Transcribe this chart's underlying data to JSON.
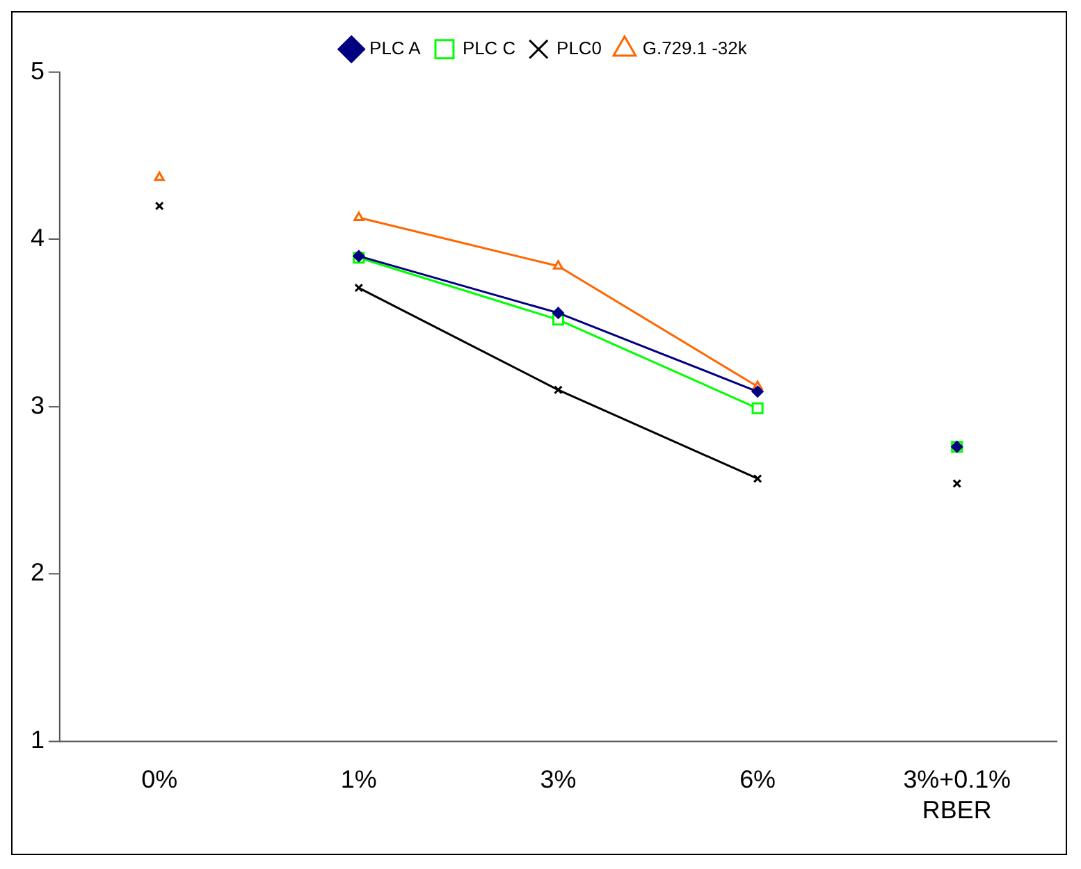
{
  "chart_data": {
    "type": "line",
    "categories": [
      "0%",
      "1%",
      "3%",
      "6%",
      "3%+0.1%\nRBER"
    ],
    "ylim": [
      1,
      5
    ],
    "yticks": [
      1,
      2,
      3,
      4,
      5
    ],
    "grid": false,
    "legend": "top",
    "series": [
      {
        "name": "PLC A",
        "color": "#000080",
        "marker": "diamond",
        "values": [
          null,
          3.9,
          3.56,
          3.09,
          null
        ]
      },
      {
        "name": "PLC C",
        "color": "#00ff00",
        "marker": "square",
        "values": [
          null,
          3.89,
          3.52,
          2.99,
          null
        ]
      },
      {
        "name": "PLC0",
        "color": "#000000",
        "marker": "cross",
        "values": [
          null,
          3.71,
          3.1,
          2.57,
          null
        ]
      },
      {
        "name": "G.729.1 -32k",
        "color": "#ff6600",
        "marker": "triangle",
        "values": [
          null,
          4.13,
          3.84,
          3.12,
          null
        ]
      },
      {
        "type": "scatter",
        "color": "#000080",
        "marker": "diamond",
        "x": [
          "3%+0.1%\nRBER"
        ],
        "values": [
          2.76
        ]
      },
      {
        "type": "scatter",
        "color": "#00ff00",
        "marker": "square",
        "x": [
          "3%+0.1%\nRBER"
        ],
        "values": [
          2.76
        ]
      },
      {
        "type": "scatter",
        "color": "#000000",
        "marker": "cross",
        "x": [
          "0%",
          "3%+0.1%\nRBER"
        ],
        "values": [
          4.2,
          2.54
        ]
      },
      {
        "type": "scatter",
        "color": "#ff6600",
        "marker": "triangle",
        "x": [
          "0%"
        ],
        "values": [
          4.37
        ]
      }
    ]
  }
}
